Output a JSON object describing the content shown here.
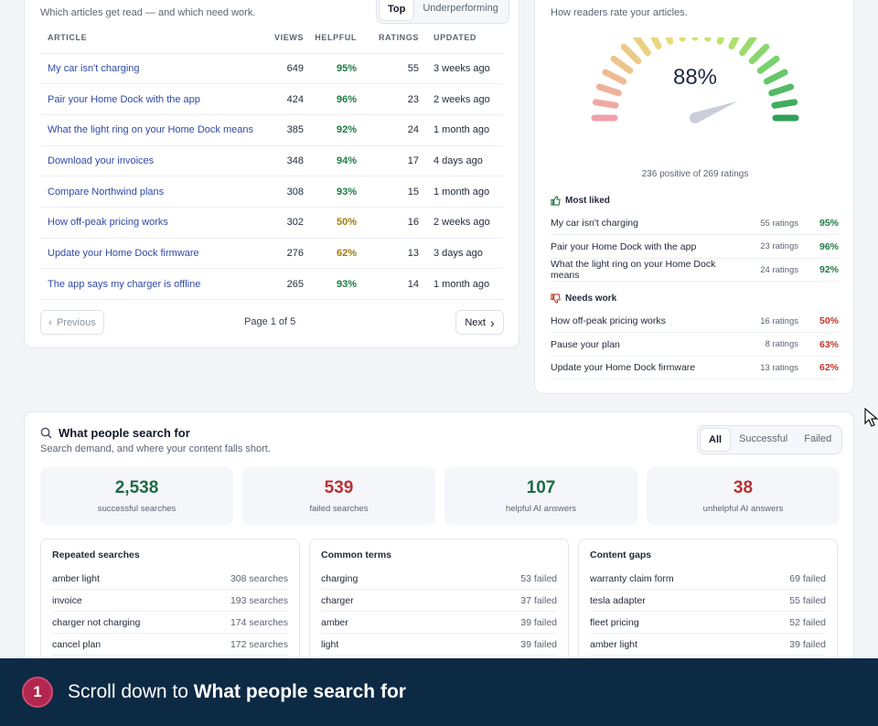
{
  "articles": {
    "subtitle": "Which articles get read — and which need work.",
    "tabs": [
      "Top",
      "Underperforming"
    ],
    "columns": [
      "ARTICLE",
      "VIEWS",
      "HELPFUL",
      "RATINGS",
      "UPDATED"
    ],
    "rows": [
      {
        "title": "My car isn't charging",
        "views": "649",
        "helpful": "95%",
        "ratings": "55",
        "updated": "3 weeks ago",
        "tone": "good"
      },
      {
        "title": "Pair your Home Dock with the app",
        "views": "424",
        "helpful": "96%",
        "ratings": "23",
        "updated": "2 weeks ago",
        "tone": "good"
      },
      {
        "title": "What the light ring on your Home Dock means",
        "views": "385",
        "helpful": "92%",
        "ratings": "24",
        "updated": "1 month ago",
        "tone": "good"
      },
      {
        "title": "Download your invoices",
        "views": "348",
        "helpful": "94%",
        "ratings": "17",
        "updated": "4 days ago",
        "tone": "good"
      },
      {
        "title": "Compare Northwind plans",
        "views": "308",
        "helpful": "93%",
        "ratings": "15",
        "updated": "1 month ago",
        "tone": "good"
      },
      {
        "title": "How off-peak pricing works",
        "views": "302",
        "helpful": "50%",
        "ratings": "16",
        "updated": "2 weeks ago",
        "tone": "mid"
      },
      {
        "title": "Update your Home Dock firmware",
        "views": "276",
        "helpful": "62%",
        "ratings": "13",
        "updated": "3 days ago",
        "tone": "mid"
      },
      {
        "title": "The app says my charger is offline",
        "views": "265",
        "helpful": "93%",
        "ratings": "14",
        "updated": "1 month ago",
        "tone": "good"
      }
    ],
    "prev_label": "Previous",
    "next_label": "Next",
    "page_label": "Page 1 of 5"
  },
  "ratings": {
    "subtitle": "How readers rate your articles.",
    "gauge_value": "88%",
    "gauge_fraction": 0.88,
    "summary": "236 positive of 269 ratings",
    "most_liked_label": "Most liked",
    "most_liked": [
      {
        "title": "My car isn't charging",
        "count": "55 ratings",
        "pct": "95%"
      },
      {
        "title": "Pair your Home Dock with the app",
        "count": "23 ratings",
        "pct": "96%"
      },
      {
        "title": "What the light ring on your Home Dock means",
        "count": "24 ratings",
        "pct": "92%"
      }
    ],
    "needs_work_label": "Needs work",
    "needs_work": [
      {
        "title": "How off-peak pricing works",
        "count": "16 ratings",
        "pct": "50%"
      },
      {
        "title": "Pause your plan",
        "count": "8 ratings",
        "pct": "63%"
      },
      {
        "title": "Update your Home Dock firmware",
        "count": "13 ratings",
        "pct": "62%"
      }
    ],
    "colors": {
      "good": "#1f7a45",
      "bad": "#c0392b"
    }
  },
  "search": {
    "title": "What people search for",
    "subtitle": "Search demand, and where your content falls short.",
    "filters": [
      "All",
      "Successful",
      "Failed"
    ],
    "stats": [
      {
        "value": "2,538",
        "label": "successful searches",
        "color": "#1f6b45"
      },
      {
        "value": "539",
        "label": "failed searches",
        "color": "#b83232"
      },
      {
        "value": "107",
        "label": "helpful AI answers",
        "color": "#1f6b45"
      },
      {
        "value": "38",
        "label": "unhelpful AI answers",
        "color": "#b83232"
      }
    ],
    "panels": [
      {
        "title": "Repeated searches",
        "rows": [
          {
            "term": "amber light",
            "count": "308 searches"
          },
          {
            "term": "invoice",
            "count": "193 searches"
          },
          {
            "term": "charger not charging",
            "count": "174 searches"
          },
          {
            "term": "cancel plan",
            "count": "172 searches"
          }
        ]
      },
      {
        "title": "Common terms",
        "rows": [
          {
            "term": "charging",
            "count": "53 failed"
          },
          {
            "term": "charger",
            "count": "37 failed"
          },
          {
            "term": "amber",
            "count": "39 failed"
          },
          {
            "term": "light",
            "count": "39 failed"
          }
        ]
      },
      {
        "title": "Content gaps",
        "rows": [
          {
            "term": "warranty claim form",
            "count": "69 failed"
          },
          {
            "term": "tesla adapter",
            "count": "55 failed"
          },
          {
            "term": "fleet pricing",
            "count": "52 failed"
          },
          {
            "term": "amber light",
            "count": "39 failed"
          }
        ]
      }
    ]
  },
  "footer": {
    "step": "1",
    "text_prefix": "Scroll down to ",
    "text_bold": "What people search for"
  }
}
